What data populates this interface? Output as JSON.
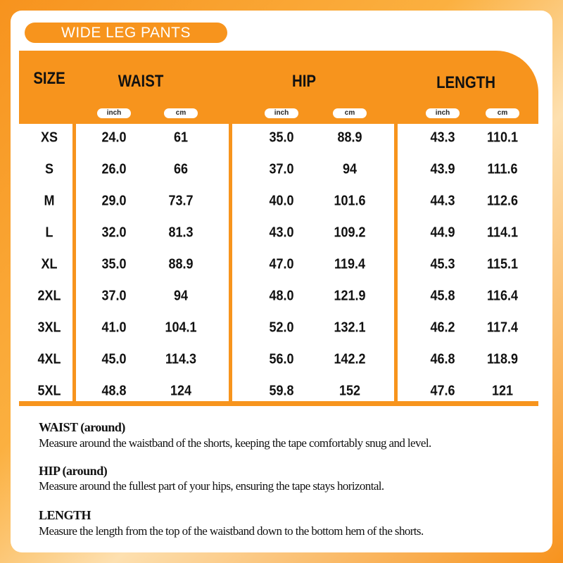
{
  "header": {
    "title": "WIDE LEG PANTS"
  },
  "table": {
    "columns": [
      "SIZE",
      "WAIST",
      "HIP",
      "LENGTH"
    ],
    "units": [
      "inch",
      "cm",
      "inch",
      "cm",
      "inch",
      "cm"
    ],
    "rows": [
      [
        "XS",
        "24.0",
        "61",
        "35.0",
        "88.9",
        "43.3",
        "110.1"
      ],
      [
        "S",
        "26.0",
        "66",
        "37.0",
        "94",
        "43.9",
        "111.6"
      ],
      [
        "M",
        "29.0",
        "73.7",
        "40.0",
        "101.6",
        "44.3",
        "112.6"
      ],
      [
        "L",
        "32.0",
        "81.3",
        "43.0",
        "109.2",
        "44.9",
        "114.1"
      ],
      [
        "XL",
        "35.0",
        "88.9",
        "47.0",
        "119.4",
        "45.3",
        "115.1"
      ],
      [
        "2XL",
        "37.0",
        "94",
        "48.0",
        "121.9",
        "45.8",
        "116.4"
      ],
      [
        "3XL",
        "41.0",
        "104.1",
        "52.0",
        "132.1",
        "46.2",
        "117.4"
      ],
      [
        "4XL",
        "45.0",
        "114.3",
        "56.0",
        "142.2",
        "46.8",
        "118.9"
      ],
      [
        "5XL",
        "48.8",
        "124",
        "59.8",
        "152",
        "47.6",
        "121"
      ]
    ]
  },
  "notes": [
    {
      "heading": "WAIST (around)",
      "text": "Measure around the waistband of the shorts, keeping the tape comfortably snug and level."
    },
    {
      "heading": "HIP (around)",
      "text": "Measure around the fullest part of your hips, ensuring the tape stays horizontal."
    },
    {
      "heading": "LENGTH",
      "text": "Measure the length from the top of the waistband down to the bottom hem of the shorts."
    }
  ]
}
